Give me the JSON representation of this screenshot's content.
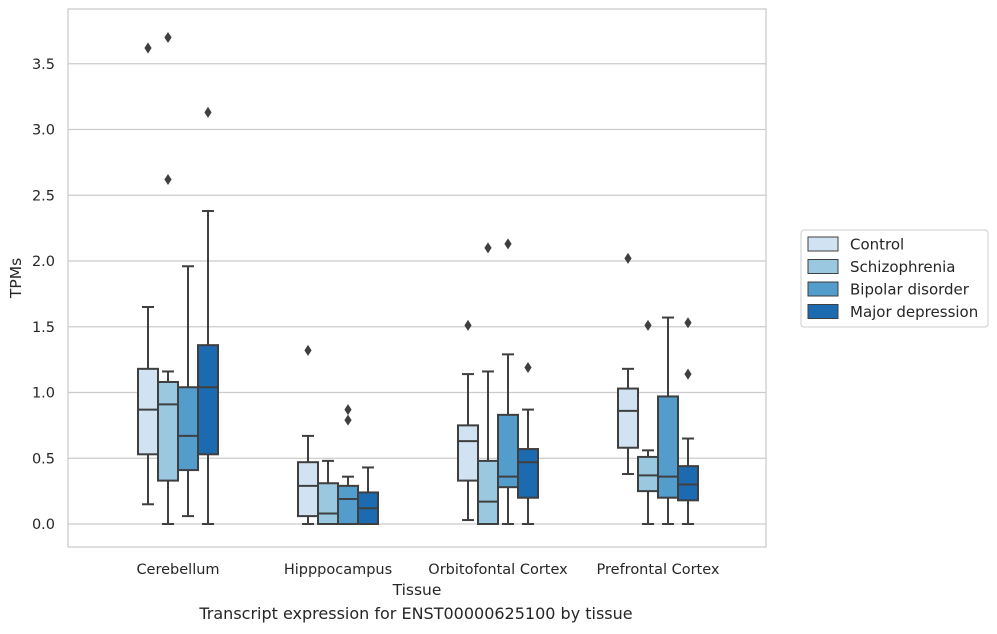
{
  "caption": "Transcript expression for ENST00000625100 by tissue",
  "chart_data": {
    "type": "boxplot",
    "xlabel": "Tissue",
    "ylabel": "TPMs",
    "ylim": [
      -0.18,
      3.9
    ],
    "yticks": [
      0.0,
      0.5,
      1.0,
      1.5,
      2.0,
      2.5,
      3.0,
      3.5
    ],
    "ytick_labels": [
      "0.0",
      "0.5",
      "1.0",
      "1.5",
      "2.0",
      "2.5",
      "3.0",
      "3.5"
    ],
    "grid": "horizontal",
    "legend_position": "right-outside",
    "categories": [
      "Cerebellum",
      "Hipppocampus",
      "Orbitofontal Cortex",
      "Prefrontal Cortex"
    ],
    "series": [
      {
        "name": "Control",
        "color": "#d1e2f2",
        "boxes": [
          {
            "whislo": 0.15,
            "q1": 0.53,
            "med": 0.87,
            "q3": 1.18,
            "whishi": 1.65,
            "fliers": [
              3.62
            ]
          },
          {
            "whislo": 0.0,
            "q1": 0.06,
            "med": 0.29,
            "q3": 0.47,
            "whishi": 0.67,
            "fliers": [
              1.32
            ]
          },
          {
            "whislo": 0.03,
            "q1": 0.33,
            "med": 0.63,
            "q3": 0.75,
            "whishi": 1.14,
            "fliers": [
              1.51
            ]
          },
          {
            "whislo": 0.38,
            "q1": 0.58,
            "med": 0.86,
            "q3": 1.03,
            "whishi": 1.18,
            "fliers": [
              2.02
            ]
          }
        ]
      },
      {
        "name": "Schizophrenia",
        "color": "#9ac8e0",
        "boxes": [
          {
            "whislo": 0.0,
            "q1": 0.33,
            "med": 0.91,
            "q3": 1.08,
            "whishi": 1.16,
            "fliers": [
              3.7,
              2.62
            ]
          },
          {
            "whislo": 0.0,
            "q1": 0.0,
            "med": 0.08,
            "q3": 0.31,
            "whishi": 0.48,
            "fliers": []
          },
          {
            "whislo": 0.0,
            "q1": 0.0,
            "med": 0.17,
            "q3": 0.48,
            "whishi": 1.16,
            "fliers": [
              2.1
            ]
          },
          {
            "whislo": 0.0,
            "q1": 0.25,
            "med": 0.37,
            "q3": 0.51,
            "whishi": 0.56,
            "fliers": [
              1.51
            ]
          }
        ]
      },
      {
        "name": "Bipolar disorder",
        "color": "#529dcc",
        "boxes": [
          {
            "whislo": 0.06,
            "q1": 0.41,
            "med": 0.67,
            "q3": 1.04,
            "whishi": 1.96,
            "fliers": []
          },
          {
            "whislo": 0.0,
            "q1": 0.0,
            "med": 0.19,
            "q3": 0.29,
            "whishi": 0.36,
            "fliers": [
              0.87,
              0.79
            ]
          },
          {
            "whislo": 0.0,
            "q1": 0.28,
            "med": 0.36,
            "q3": 0.83,
            "whishi": 1.29,
            "fliers": [
              2.13
            ]
          },
          {
            "whislo": 0.0,
            "q1": 0.2,
            "med": 0.36,
            "q3": 0.97,
            "whishi": 1.57,
            "fliers": []
          }
        ]
      },
      {
        "name": "Major depression",
        "color": "#1c6aaf",
        "boxes": [
          {
            "whislo": 0.0,
            "q1": 0.53,
            "med": 1.04,
            "q3": 1.36,
            "whishi": 2.38,
            "fliers": [
              3.13
            ]
          },
          {
            "whislo": 0.0,
            "q1": 0.0,
            "med": 0.12,
            "q3": 0.24,
            "whishi": 0.43,
            "fliers": []
          },
          {
            "whislo": 0.0,
            "q1": 0.2,
            "med": 0.47,
            "q3": 0.57,
            "whishi": 0.87,
            "fliers": [
              1.19
            ]
          },
          {
            "whislo": 0.0,
            "q1": 0.18,
            "med": 0.3,
            "q3": 0.44,
            "whishi": 0.65,
            "fliers": [
              1.53,
              1.14
            ]
          }
        ]
      }
    ]
  }
}
